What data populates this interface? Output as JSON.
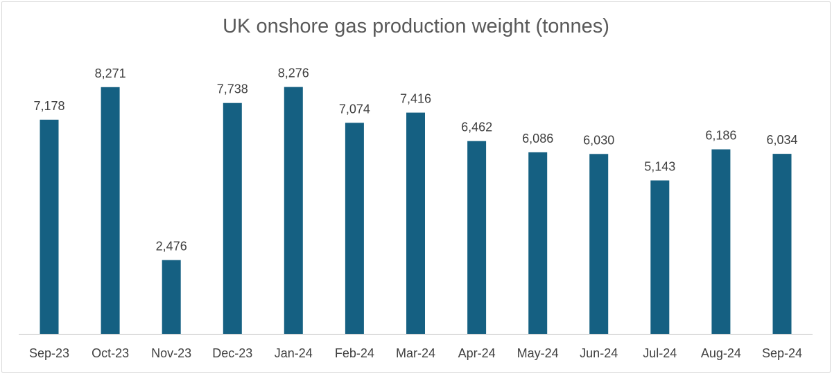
{
  "chart_data": {
    "type": "bar",
    "title": "UK onshore gas production weight (tonnes)",
    "categories": [
      "Sep-23",
      "Oct-23",
      "Nov-23",
      "Dec-23",
      "Jan-24",
      "Feb-24",
      "Mar-24",
      "Apr-24",
      "May-24",
      "Jun-24",
      "Jul-24",
      "Aug-24",
      "Sep-24"
    ],
    "values": [
      7178,
      8271,
      2476,
      7738,
      8276,
      7074,
      7416,
      6462,
      6086,
      6030,
      5143,
      6186,
      6034
    ],
    "data_labels": [
      "7,178",
      "8,271",
      "2,476",
      "7,738",
      "8,276",
      "7,074",
      "7,416",
      "6,462",
      "6,086",
      "6,030",
      "5,143",
      "6,186",
      "6,034"
    ],
    "xlabel": "",
    "ylabel": "",
    "ylim": [
      0,
      9000
    ],
    "grid": false,
    "legend": "none",
    "colors": {
      "bar": "#156082",
      "text": "#404040",
      "title": "#595959",
      "axis": "#bfbfbf"
    }
  }
}
